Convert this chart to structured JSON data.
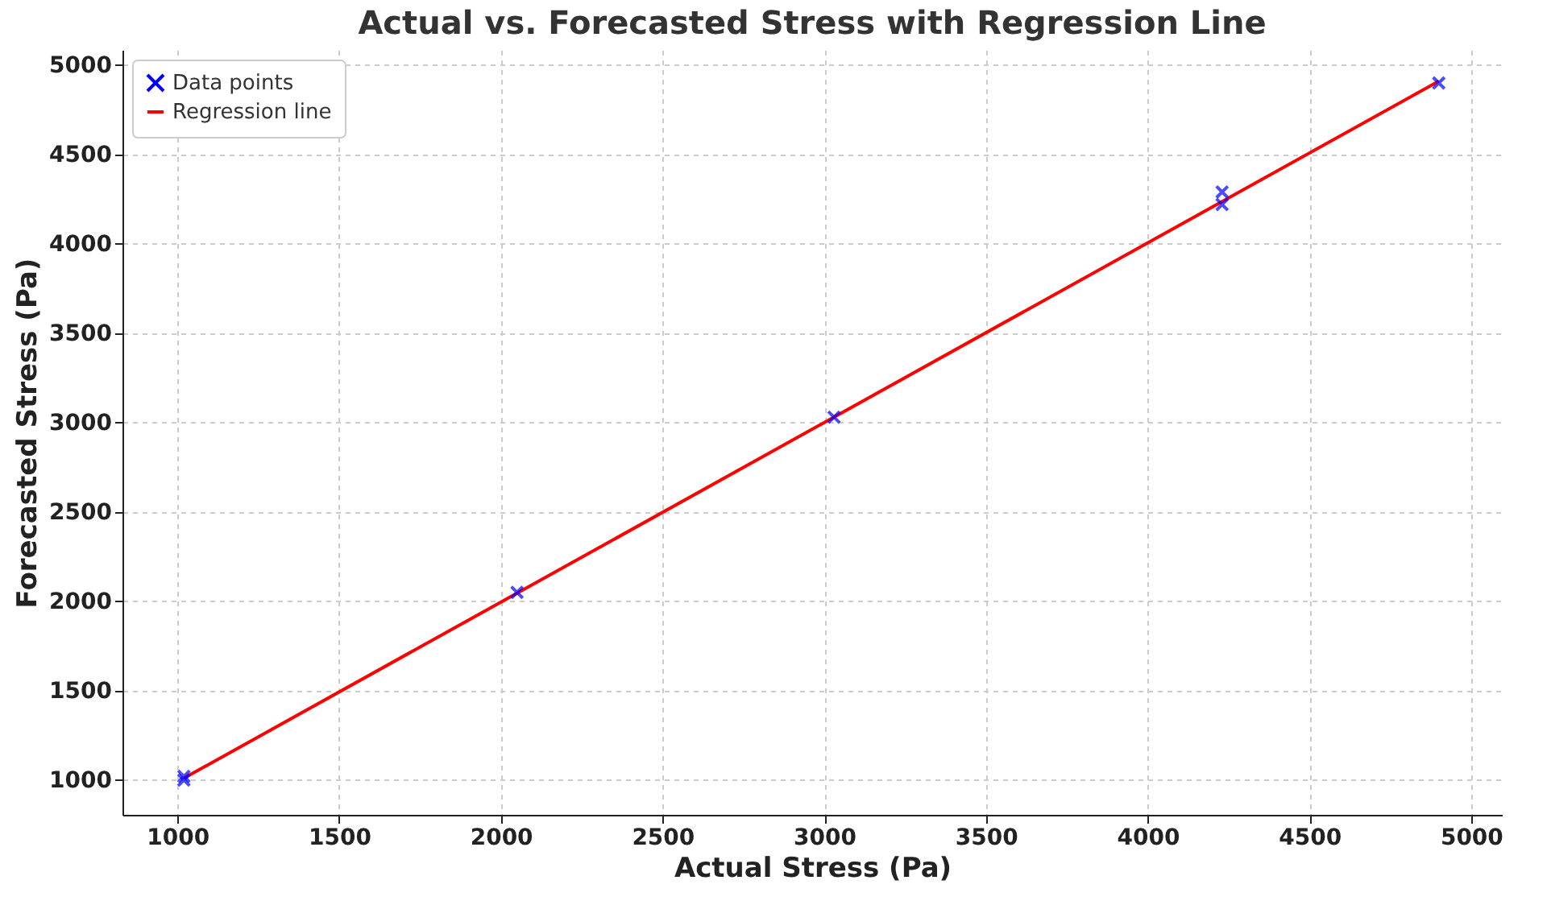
{
  "chart_data": {
    "type": "scatter",
    "title": "Actual vs. Forecasted Stress with Regression Line",
    "xlabel": "Actual Stress (Pa)",
    "ylabel": "Forecasted Stress (Pa)",
    "series": [
      {
        "name": "Data points",
        "type": "scatter",
        "color": "#0000ff",
        "marker": "cross",
        "x": [
          1020,
          1020,
          2050,
          3030,
          4230,
          4230,
          4900
        ],
        "values": [
          1000,
          1020,
          2050,
          3030,
          4290,
          4220,
          4900
        ]
      },
      {
        "name": "Regression line",
        "type": "line",
        "color": "#ff0000",
        "line_style": "solid",
        "x": [
          1020,
          4900
        ],
        "values": [
          1010,
          4910
        ]
      }
    ],
    "xlim": [
      830,
      5095
    ],
    "ylim": [
      805,
      5085
    ],
    "xticks": [
      1000,
      1500,
      2000,
      2500,
      3000,
      3500,
      4000,
      4500,
      5000
    ],
    "yticks": [
      1000,
      1500,
      2000,
      2500,
      3000,
      3500,
      4000,
      4500,
      5000
    ],
    "grid": true,
    "legend": "top left"
  }
}
